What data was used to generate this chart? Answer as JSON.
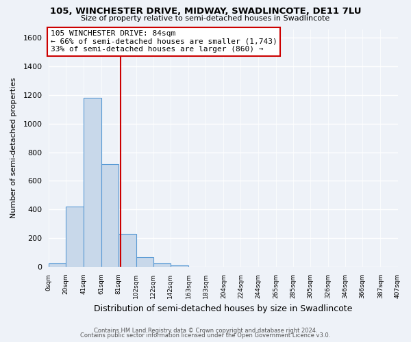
{
  "title": "105, WINCHESTER DRIVE, MIDWAY, SWADLINCOTE, DE11 7LU",
  "subtitle": "Size of property relative to semi-detached houses in Swadlincote",
  "xlabel": "Distribution of semi-detached houses by size in Swadlincote",
  "ylabel": "Number of semi-detached properties",
  "bar_edges": [
    0,
    20,
    41,
    61,
    81,
    102,
    122,
    142,
    163,
    183,
    204,
    224,
    244,
    265,
    285,
    305,
    326,
    346,
    366,
    387,
    407
  ],
  "bar_heights": [
    25,
    420,
    1180,
    715,
    230,
    65,
    25,
    10,
    0,
    0,
    0,
    0,
    0,
    0,
    0,
    0,
    0,
    0,
    0,
    0
  ],
  "bar_color": "#c8d8ea",
  "bar_edge_color": "#5b9bd5",
  "property_size": 84,
  "vline_color": "#cc0000",
  "annotation_box_edge_color": "#cc0000",
  "annotation_title": "105 WINCHESTER DRIVE: 84sqm",
  "annotation_line1": "← 66% of semi-detached houses are smaller (1,743)",
  "annotation_line2": "33% of semi-detached houses are larger (860) →",
  "ylim": [
    0,
    1660
  ],
  "xlim": [
    0,
    407
  ],
  "yticks": [
    0,
    200,
    400,
    600,
    800,
    1000,
    1200,
    1400,
    1600
  ],
  "background_color": "#eef2f8",
  "grid_color": "#ffffff",
  "footer1": "Contains HM Land Registry data © Crown copyright and database right 2024.",
  "footer2": "Contains public sector information licensed under the Open Government Licence v3.0."
}
